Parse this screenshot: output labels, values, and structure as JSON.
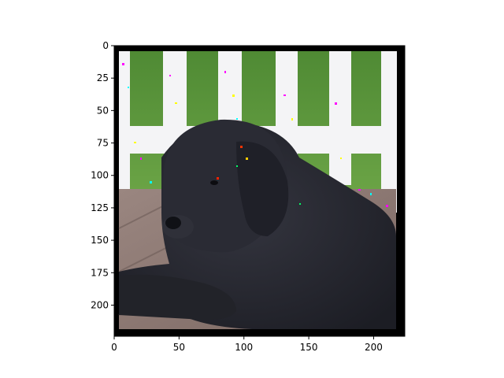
{
  "chart_data": {
    "type": "heatmap",
    "title": "",
    "xlabel": "",
    "ylabel": "",
    "content": "photo-of-black-newfoundland-dog-lying-on-wooden-deck-in-front-of-white-picket-fence-and-grass-with-colored-noise-artifacts",
    "xlim": [
      0,
      224
    ],
    "ylim": [
      224,
      0
    ],
    "xticks": [
      0,
      50,
      100,
      150,
      200
    ],
    "yticks": [
      0,
      25,
      50,
      75,
      100,
      125,
      150,
      175,
      200
    ],
    "xtick_labels": [
      "0",
      "50",
      "100",
      "150",
      "200"
    ],
    "ytick_labels": [
      "0",
      "25",
      "50",
      "75",
      "100",
      "125",
      "150",
      "175",
      "200"
    ],
    "grid": false,
    "legend": "none",
    "colors": {
      "grass": "#5f9a3c",
      "fence": "#f2f2f4",
      "dog": "#25262e",
      "deck": "#8a7470",
      "border": "#000000"
    }
  }
}
